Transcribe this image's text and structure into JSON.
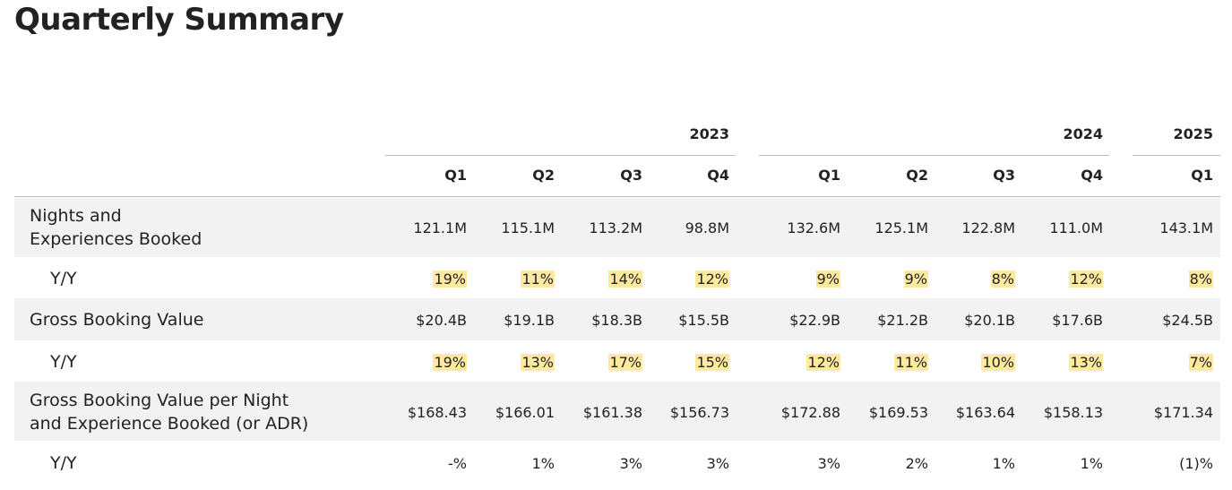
{
  "title": "Quarterly Summary",
  "years": [
    "2023",
    "2024",
    "2025"
  ],
  "quarters": [
    "Q1",
    "Q2",
    "Q3",
    "Q4",
    "Q1",
    "Q2",
    "Q3",
    "Q4",
    "Q1"
  ],
  "highlight_color": "#fdeaa0",
  "rows": [
    {
      "label_line1": "Nights and",
      "label_line2": "Experiences Booked",
      "values": [
        "121.1M",
        "115.1M",
        "113.2M",
        "98.8M",
        "132.6M",
        "125.1M",
        "122.8M",
        "111.0M",
        "143.1M"
      ]
    },
    {
      "label": "Y/Y",
      "values": [
        "19%",
        "11%",
        "14%",
        "12%",
        "9%",
        "9%",
        "8%",
        "12%",
        "8%"
      ]
    },
    {
      "label": "Gross Booking Value",
      "values": [
        "$20.4B",
        "$19.1B",
        "$18.3B",
        "$15.5B",
        "$22.9B",
        "$21.2B",
        "$20.1B",
        "$17.6B",
        "$24.5B"
      ]
    },
    {
      "label": "Y/Y",
      "values": [
        "19%",
        "13%",
        "17%",
        "15%",
        "12%",
        "11%",
        "10%",
        "13%",
        "7%"
      ]
    },
    {
      "label_line1": "Gross Booking Value per Night",
      "label_line2": "and Experience Booked (or ADR)",
      "values": [
        "$168.43",
        "$166.01",
        "$161.38",
        "$156.73",
        "$172.88",
        "$169.53",
        "$163.64",
        "$158.13",
        "$171.34"
      ]
    },
    {
      "label": "Y/Y",
      "values": [
        "-%",
        "1%",
        "3%",
        "3%",
        "3%",
        "2%",
        "1%",
        "1%",
        "(1)%"
      ]
    }
  ]
}
